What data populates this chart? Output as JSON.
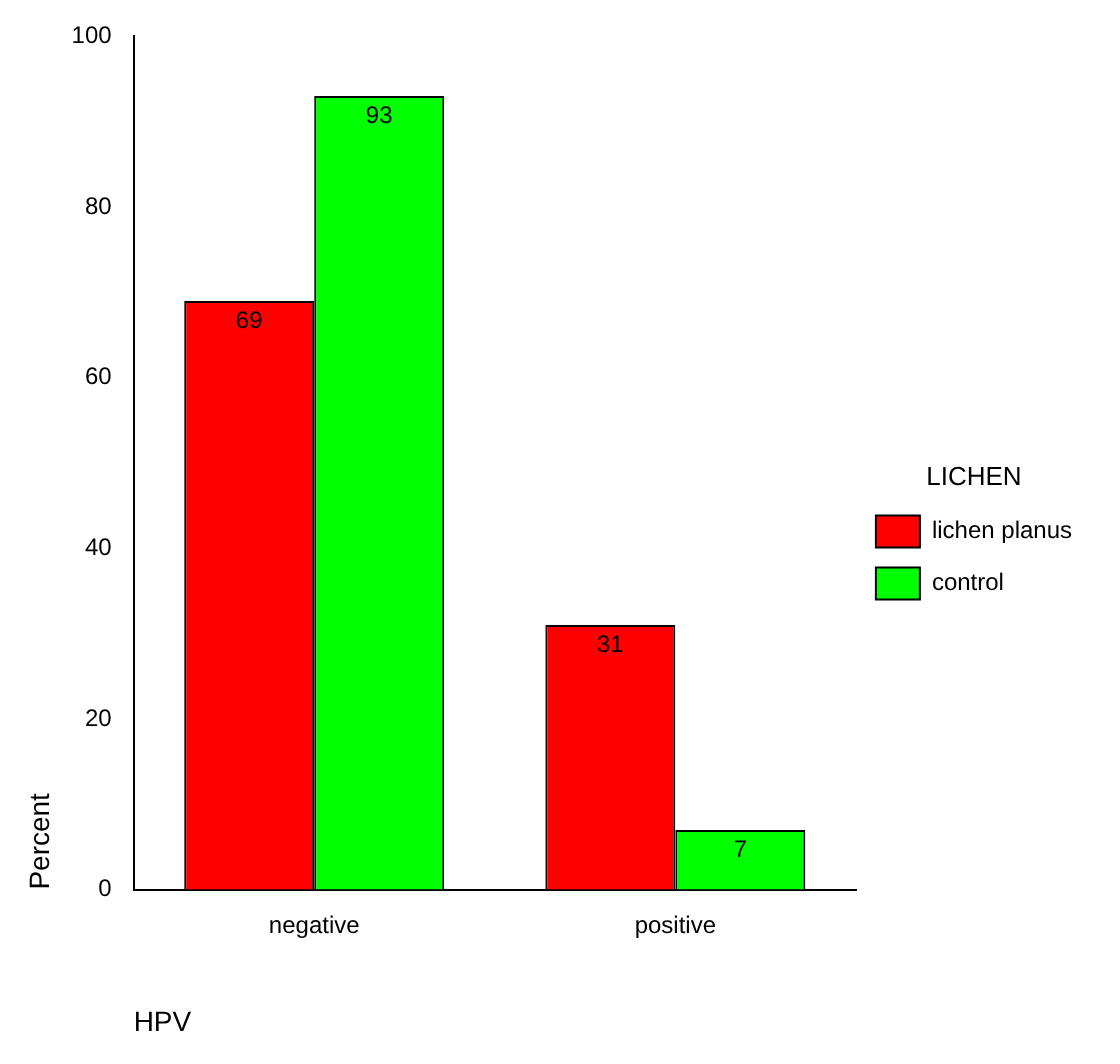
{
  "chart_data": {
    "type": "bar",
    "categories": [
      "negative",
      "positive"
    ],
    "series": [
      {
        "name": "lichen planus",
        "color": "#ff0000",
        "values": [
          69,
          31
        ]
      },
      {
        "name": "control",
        "color": "#00ff00",
        "values": [
          93,
          7
        ]
      }
    ],
    "xlabel": "HPV",
    "ylabel": "Percent",
    "legend_title": "LICHEN",
    "legend": "right",
    "ylim": [
      0,
      100
    ],
    "yticks": [
      0,
      20,
      40,
      60,
      80,
      100
    ],
    "grid": false,
    "data_labels": true
  }
}
